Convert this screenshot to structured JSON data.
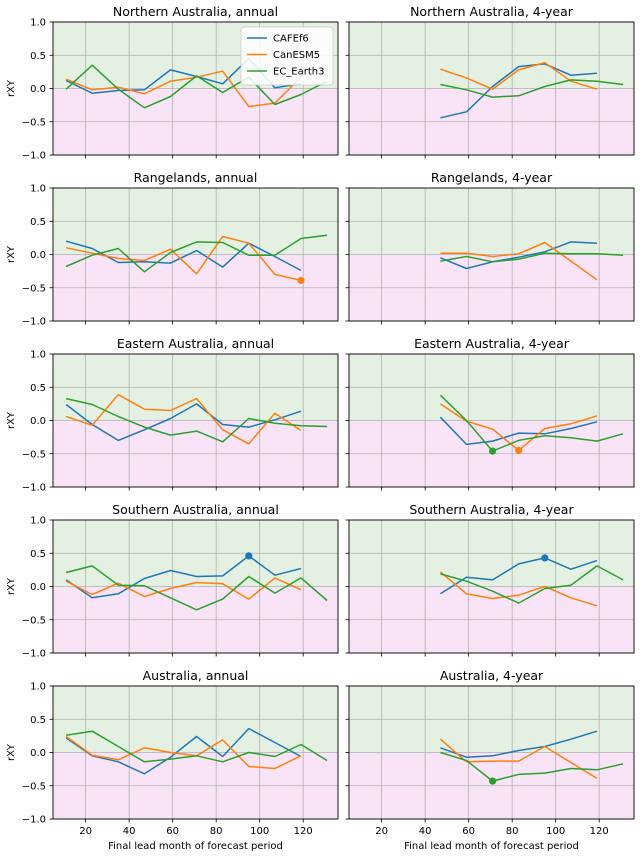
{
  "figure": {
    "xlabel": "Final lead month of forecast period",
    "ylabel": "rXY"
  },
  "styling": {
    "positive_band_color": "#e4f0e2",
    "negative_band_color": "#f8e4f6",
    "grid_color": "#b0b0b0",
    "series_colors": {
      "CAFEf6": "#1f77b4",
      "CanESM5": "#ff7f0e",
      "EC_Earth3": "#2ca02c"
    }
  },
  "legend": {
    "placement": "top-right of first panel",
    "entries": [
      "CAFEf6",
      "CanESM5",
      "EC_Earth3"
    ]
  },
  "chart_data": [
    {
      "type": "line",
      "title": "Northern Australia, annual",
      "xlim": [
        5,
        136
      ],
      "ylim": [
        -1.0,
        1.0
      ],
      "xticks": [
        20,
        40,
        60,
        80,
        100,
        120
      ],
      "yticks": [
        -1.0,
        -0.5,
        0.0,
        0.5,
        1.0
      ],
      "ytick_labels": [
        "−1.0",
        "−0.5",
        "0.0",
        "0.5",
        "1.0"
      ],
      "grid": true,
      "show_legend": true,
      "show_xticklabels": false,
      "show_yticklabels": true,
      "series": [
        {
          "name": "CAFEf6",
          "x": [
            11,
            23,
            35,
            47,
            59,
            71,
            83,
            95,
            107,
            119
          ],
          "y": [
            0.12,
            -0.07,
            -0.03,
            -0.02,
            0.28,
            0.18,
            0.07,
            0.45,
            0.01,
            0.07
          ],
          "markers": []
        },
        {
          "name": "CanESM5",
          "x": [
            11,
            23,
            35,
            47,
            59,
            71,
            83,
            95,
            107,
            119
          ],
          "y": [
            0.14,
            -0.02,
            0.02,
            -0.08,
            0.11,
            0.17,
            0.26,
            -0.27,
            -0.22,
            0.17
          ],
          "markers": []
        },
        {
          "name": "EC_Earth3",
          "x": [
            11,
            23,
            35,
            47,
            59,
            71,
            83,
            95,
            107,
            119,
            131
          ],
          "y": [
            -0.01,
            0.35,
            -0.01,
            -0.29,
            -0.12,
            0.19,
            -0.06,
            0.17,
            -0.24,
            -0.09,
            0.11
          ],
          "markers": []
        }
      ]
    },
    {
      "type": "line",
      "title": "Northern Australia, 4-year",
      "xlim": [
        5,
        136
      ],
      "ylim": [
        -1.0,
        1.0
      ],
      "xticks": [
        20,
        40,
        60,
        80,
        100,
        120
      ],
      "yticks": [
        -1.0,
        -0.5,
        0.0,
        0.5,
        1.0
      ],
      "grid": true,
      "show_legend": false,
      "show_xticklabels": false,
      "show_yticklabels": false,
      "series": [
        {
          "name": "CAFEf6",
          "x": [
            47,
            59,
            71,
            83,
            95,
            107,
            119
          ],
          "y": [
            -0.44,
            -0.35,
            0.03,
            0.33,
            0.37,
            0.2,
            0.23
          ],
          "markers": []
        },
        {
          "name": "CanESM5",
          "x": [
            47,
            59,
            71,
            83,
            95,
            107,
            119
          ],
          "y": [
            0.29,
            0.16,
            -0.01,
            0.28,
            0.39,
            0.11,
            -0.01
          ],
          "markers": []
        },
        {
          "name": "EC_Earth3",
          "x": [
            47,
            59,
            71,
            83,
            95,
            107,
            119,
            131
          ],
          "y": [
            0.06,
            -0.02,
            -0.13,
            -0.11,
            0.03,
            0.13,
            0.11,
            0.06
          ],
          "markers": []
        }
      ]
    },
    {
      "type": "line",
      "title": "Rangelands, annual",
      "xlim": [
        5,
        136
      ],
      "ylim": [
        -1.0,
        1.0
      ],
      "xticks": [
        20,
        40,
        60,
        80,
        100,
        120
      ],
      "yticks": [
        -1.0,
        -0.5,
        0.0,
        0.5,
        1.0
      ],
      "ytick_labels": [
        "−1.0",
        "−0.5",
        "0.0",
        "0.5",
        "1.0"
      ],
      "grid": true,
      "show_legend": false,
      "show_xticklabels": false,
      "show_yticklabels": true,
      "series": [
        {
          "name": "CAFEf6",
          "x": [
            11,
            23,
            35,
            47,
            59,
            71,
            83,
            95,
            107,
            119
          ],
          "y": [
            0.2,
            0.09,
            -0.12,
            -0.11,
            -0.13,
            0.06,
            -0.19,
            0.17,
            -0.03,
            -0.24
          ],
          "markers": []
        },
        {
          "name": "CanESM5",
          "x": [
            11,
            23,
            35,
            47,
            59,
            71,
            83,
            95,
            107,
            119
          ],
          "y": [
            0.1,
            0.02,
            -0.06,
            -0.09,
            0.08,
            -0.29,
            0.27,
            0.17,
            -0.3,
            -0.39
          ],
          "markers": [
            119
          ]
        },
        {
          "name": "EC_Earth3",
          "x": [
            11,
            23,
            35,
            47,
            59,
            71,
            83,
            95,
            107,
            119,
            131
          ],
          "y": [
            -0.18,
            -0.01,
            0.09,
            -0.26,
            0.03,
            0.19,
            0.18,
            -0.01,
            -0.01,
            0.24,
            0.29
          ],
          "markers": []
        }
      ]
    },
    {
      "type": "line",
      "title": "Rangelands, 4-year",
      "xlim": [
        5,
        136
      ],
      "ylim": [
        -1.0,
        1.0
      ],
      "xticks": [
        20,
        40,
        60,
        80,
        100,
        120
      ],
      "yticks": [
        -1.0,
        -0.5,
        0.0,
        0.5,
        1.0
      ],
      "grid": true,
      "show_legend": false,
      "show_xticklabels": false,
      "show_yticklabels": false,
      "series": [
        {
          "name": "CAFEf6",
          "x": [
            47,
            59,
            71,
            83,
            95,
            107,
            119
          ],
          "y": [
            -0.05,
            -0.21,
            -0.11,
            -0.04,
            0.04,
            0.19,
            0.17
          ],
          "markers": []
        },
        {
          "name": "CanESM5",
          "x": [
            47,
            59,
            71,
            83,
            95,
            107,
            119
          ],
          "y": [
            0.02,
            0.02,
            -0.03,
            0.01,
            0.18,
            -0.1,
            -0.38
          ],
          "markers": []
        },
        {
          "name": "EC_Earth3",
          "x": [
            47,
            59,
            71,
            83,
            95,
            107,
            119,
            131
          ],
          "y": [
            -0.1,
            -0.03,
            -0.11,
            -0.07,
            0.02,
            0.01,
            0.01,
            -0.01
          ],
          "markers": []
        }
      ]
    },
    {
      "type": "line",
      "title": "Eastern Australia, annual",
      "xlim": [
        5,
        136
      ],
      "ylim": [
        -1.0,
        1.0
      ],
      "xticks": [
        20,
        40,
        60,
        80,
        100,
        120
      ],
      "yticks": [
        -1.0,
        -0.5,
        0.0,
        0.5,
        1.0
      ],
      "ytick_labels": [
        "−1.0",
        "−0.5",
        "0.0",
        "0.5",
        "1.0"
      ],
      "grid": true,
      "show_legend": false,
      "show_xticklabels": false,
      "show_yticklabels": true,
      "series": [
        {
          "name": "CAFEf6",
          "x": [
            11,
            23,
            35,
            47,
            59,
            71,
            83,
            95,
            107,
            119
          ],
          "y": [
            0.24,
            -0.06,
            -0.3,
            -0.14,
            0.03,
            0.25,
            -0.06,
            -0.1,
            0.01,
            0.14
          ],
          "markers": []
        },
        {
          "name": "CanESM5",
          "x": [
            11,
            23,
            35,
            47,
            59,
            71,
            83,
            95,
            107,
            119
          ],
          "y": [
            0.06,
            -0.07,
            0.39,
            0.17,
            0.15,
            0.33,
            -0.14,
            -0.35,
            0.11,
            -0.15
          ],
          "markers": []
        },
        {
          "name": "EC_Earth3",
          "x": [
            11,
            23,
            35,
            47,
            59,
            71,
            83,
            95,
            107,
            119,
            131
          ],
          "y": [
            0.33,
            0.24,
            0.06,
            -0.1,
            -0.22,
            -0.16,
            -0.32,
            0.03,
            -0.04,
            -0.08,
            -0.09
          ],
          "markers": []
        }
      ]
    },
    {
      "type": "line",
      "title": "Eastern Australia, 4-year",
      "xlim": [
        5,
        136
      ],
      "ylim": [
        -1.0,
        1.0
      ],
      "xticks": [
        20,
        40,
        60,
        80,
        100,
        120
      ],
      "yticks": [
        -1.0,
        -0.5,
        0.0,
        0.5,
        1.0
      ],
      "grid": true,
      "show_legend": false,
      "show_xticklabels": false,
      "show_yticklabels": false,
      "series": [
        {
          "name": "CAFEf6",
          "x": [
            47,
            59,
            71,
            83,
            95,
            107,
            119
          ],
          "y": [
            0.05,
            -0.36,
            -0.31,
            -0.19,
            -0.2,
            -0.12,
            -0.02
          ],
          "markers": []
        },
        {
          "name": "CanESM5",
          "x": [
            47,
            59,
            71,
            83,
            95,
            107,
            119
          ],
          "y": [
            0.25,
            -0.01,
            -0.13,
            -0.45,
            -0.12,
            -0.05,
            0.07
          ],
          "markers": [
            83
          ]
        },
        {
          "name": "EC_Earth3",
          "x": [
            47,
            59,
            71,
            83,
            95,
            107,
            119,
            131
          ],
          "y": [
            0.38,
            0.0,
            -0.46,
            -0.3,
            -0.23,
            -0.26,
            -0.31,
            -0.2
          ],
          "markers": [
            71
          ]
        }
      ]
    },
    {
      "type": "line",
      "title": "Southern Australia, annual",
      "xlim": [
        5,
        136
      ],
      "ylim": [
        -1.0,
        1.0
      ],
      "xticks": [
        20,
        40,
        60,
        80,
        100,
        120
      ],
      "yticks": [
        -1.0,
        -0.5,
        0.0,
        0.5,
        1.0
      ],
      "ytick_labels": [
        "−1.0",
        "−0.5",
        "0.0",
        "0.5",
        "1.0"
      ],
      "grid": true,
      "show_legend": false,
      "show_xticklabels": false,
      "show_yticklabels": true,
      "series": [
        {
          "name": "CAFEf6",
          "x": [
            11,
            23,
            35,
            47,
            59,
            71,
            83,
            95,
            107,
            119
          ],
          "y": [
            0.1,
            -0.17,
            -0.11,
            0.12,
            0.24,
            0.15,
            0.16,
            0.46,
            0.17,
            0.27
          ],
          "markers": [
            95
          ]
        },
        {
          "name": "CanESM5",
          "x": [
            11,
            23,
            35,
            47,
            59,
            71,
            83,
            95,
            107,
            119
          ],
          "y": [
            0.08,
            -0.12,
            0.05,
            -0.15,
            -0.03,
            0.06,
            0.04,
            -0.19,
            0.13,
            -0.05
          ],
          "markers": []
        },
        {
          "name": "EC_Earth3",
          "x": [
            11,
            23,
            35,
            47,
            59,
            71,
            83,
            95,
            107,
            119,
            131
          ],
          "y": [
            0.21,
            0.31,
            0.02,
            0.01,
            -0.17,
            -0.35,
            -0.19,
            0.15,
            -0.1,
            0.13,
            -0.21
          ],
          "markers": []
        }
      ]
    },
    {
      "type": "line",
      "title": "Southern Australia, 4-year",
      "xlim": [
        5,
        136
      ],
      "ylim": [
        -1.0,
        1.0
      ],
      "xticks": [
        20,
        40,
        60,
        80,
        100,
        120
      ],
      "yticks": [
        -1.0,
        -0.5,
        0.0,
        0.5,
        1.0
      ],
      "grid": true,
      "show_legend": false,
      "show_xticklabels": false,
      "show_yticklabels": false,
      "series": [
        {
          "name": "CAFEf6",
          "x": [
            47,
            59,
            71,
            83,
            95,
            107,
            119
          ],
          "y": [
            -0.11,
            0.14,
            0.1,
            0.34,
            0.43,
            0.26,
            0.39
          ],
          "markers": [
            95
          ]
        },
        {
          "name": "CanESM5",
          "x": [
            47,
            59,
            71,
            83,
            95,
            107,
            119
          ],
          "y": [
            0.22,
            -0.11,
            -0.18,
            -0.13,
            0.0,
            -0.17,
            -0.29
          ],
          "markers": []
        },
        {
          "name": "EC_Earth3",
          "x": [
            47,
            59,
            71,
            83,
            95,
            107,
            119,
            131
          ],
          "y": [
            0.19,
            0.08,
            -0.07,
            -0.25,
            -0.03,
            0.02,
            0.31,
            0.1
          ],
          "markers": []
        }
      ]
    },
    {
      "type": "line",
      "title": "Australia, annual",
      "xlim": [
        5,
        136
      ],
      "ylim": [
        -1.0,
        1.0
      ],
      "xticks": [
        20,
        40,
        60,
        80,
        100,
        120
      ],
      "yticks": [
        -1.0,
        -0.5,
        0.0,
        0.5,
        1.0
      ],
      "xtick_labels": [
        "20",
        "40",
        "60",
        "80",
        "100",
        "120"
      ],
      "ytick_labels": [
        "−1.0",
        "−0.5",
        "0.0",
        "0.5",
        "1.0"
      ],
      "grid": true,
      "show_legend": false,
      "show_xticklabels": true,
      "show_yticklabels": true,
      "series": [
        {
          "name": "CAFEf6",
          "x": [
            11,
            23,
            35,
            47,
            59,
            71,
            83,
            95,
            107,
            119
          ],
          "y": [
            0.22,
            -0.05,
            -0.14,
            -0.32,
            -0.07,
            0.24,
            -0.06,
            0.36,
            0.15,
            -0.06
          ],
          "markers": []
        },
        {
          "name": "CanESM5",
          "x": [
            11,
            23,
            35,
            47,
            59,
            71,
            83,
            95,
            107,
            119
          ],
          "y": [
            0.24,
            -0.04,
            -0.11,
            0.07,
            0.0,
            -0.05,
            0.19,
            -0.21,
            -0.24,
            -0.05
          ],
          "markers": []
        },
        {
          "name": "EC_Earth3",
          "x": [
            11,
            23,
            35,
            47,
            59,
            71,
            83,
            95,
            107,
            119,
            131
          ],
          "y": [
            0.26,
            0.32,
            0.09,
            -0.14,
            -0.1,
            -0.05,
            -0.14,
            0.0,
            -0.06,
            0.12,
            -0.12
          ],
          "markers": []
        }
      ]
    },
    {
      "type": "line",
      "title": "Australia, 4-year",
      "xlim": [
        5,
        136
      ],
      "ylim": [
        -1.0,
        1.0
      ],
      "xticks": [
        20,
        40,
        60,
        80,
        100,
        120
      ],
      "yticks": [
        -1.0,
        -0.5,
        0.0,
        0.5,
        1.0
      ],
      "xtick_labels": [
        "20",
        "40",
        "60",
        "80",
        "100",
        "120"
      ],
      "grid": true,
      "show_legend": false,
      "show_xticklabels": true,
      "show_yticklabels": false,
      "series": [
        {
          "name": "CAFEf6",
          "x": [
            47,
            59,
            71,
            83,
            95,
            107,
            119
          ],
          "y": [
            0.07,
            -0.07,
            -0.05,
            0.03,
            0.09,
            0.2,
            0.32
          ],
          "markers": []
        },
        {
          "name": "CanESM5",
          "x": [
            47,
            59,
            71,
            83,
            95,
            107,
            119
          ],
          "y": [
            0.2,
            -0.14,
            -0.13,
            -0.13,
            0.09,
            -0.15,
            -0.39
          ],
          "markers": []
        },
        {
          "name": "EC_Earth3",
          "x": [
            47,
            59,
            71,
            83,
            95,
            107,
            119,
            131
          ],
          "y": [
            0.0,
            -0.12,
            -0.43,
            -0.33,
            -0.31,
            -0.24,
            -0.26,
            -0.17
          ],
          "markers": [
            71
          ]
        }
      ]
    }
  ]
}
